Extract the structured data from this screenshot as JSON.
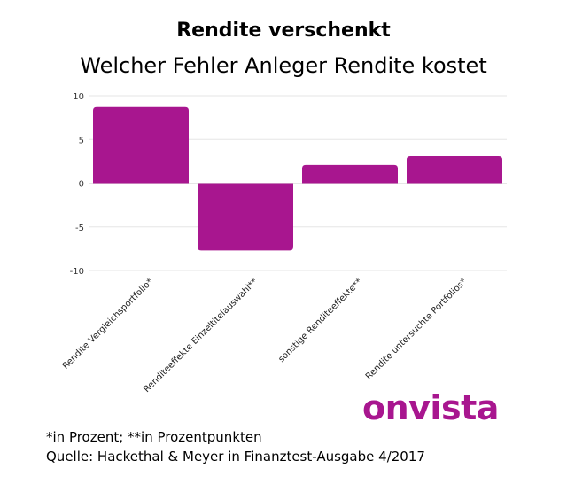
{
  "title": "Rendite verschenkt",
  "subtitle": "Welcher Fehler Anleger Rendite kostet",
  "logo": "onvista",
  "footnotes": [
    "*in Prozent; **in Prozentpunkten",
    "Quelle: Hackethal & Meyer in Finanztest-Ausgabe 4/2017"
  ],
  "colors": {
    "bar": "#a8168f",
    "logo": "#a8168f",
    "grid": "#e6e6e6"
  },
  "chart_data": {
    "type": "bar",
    "categories": [
      "Rendite Vergleichsportfolio*",
      "Renditeeffekte Einzeltitelauswahl**",
      "sonstige Renditeeffekte**",
      "Rendite untersuchte Portfolios*"
    ],
    "values": [
      8.7,
      -7.7,
      2.1,
      3.1
    ],
    "ylim": [
      -10,
      10
    ],
    "yticks": [
      10,
      5,
      0,
      -5,
      -10
    ],
    "grid": true,
    "legend": "none"
  }
}
